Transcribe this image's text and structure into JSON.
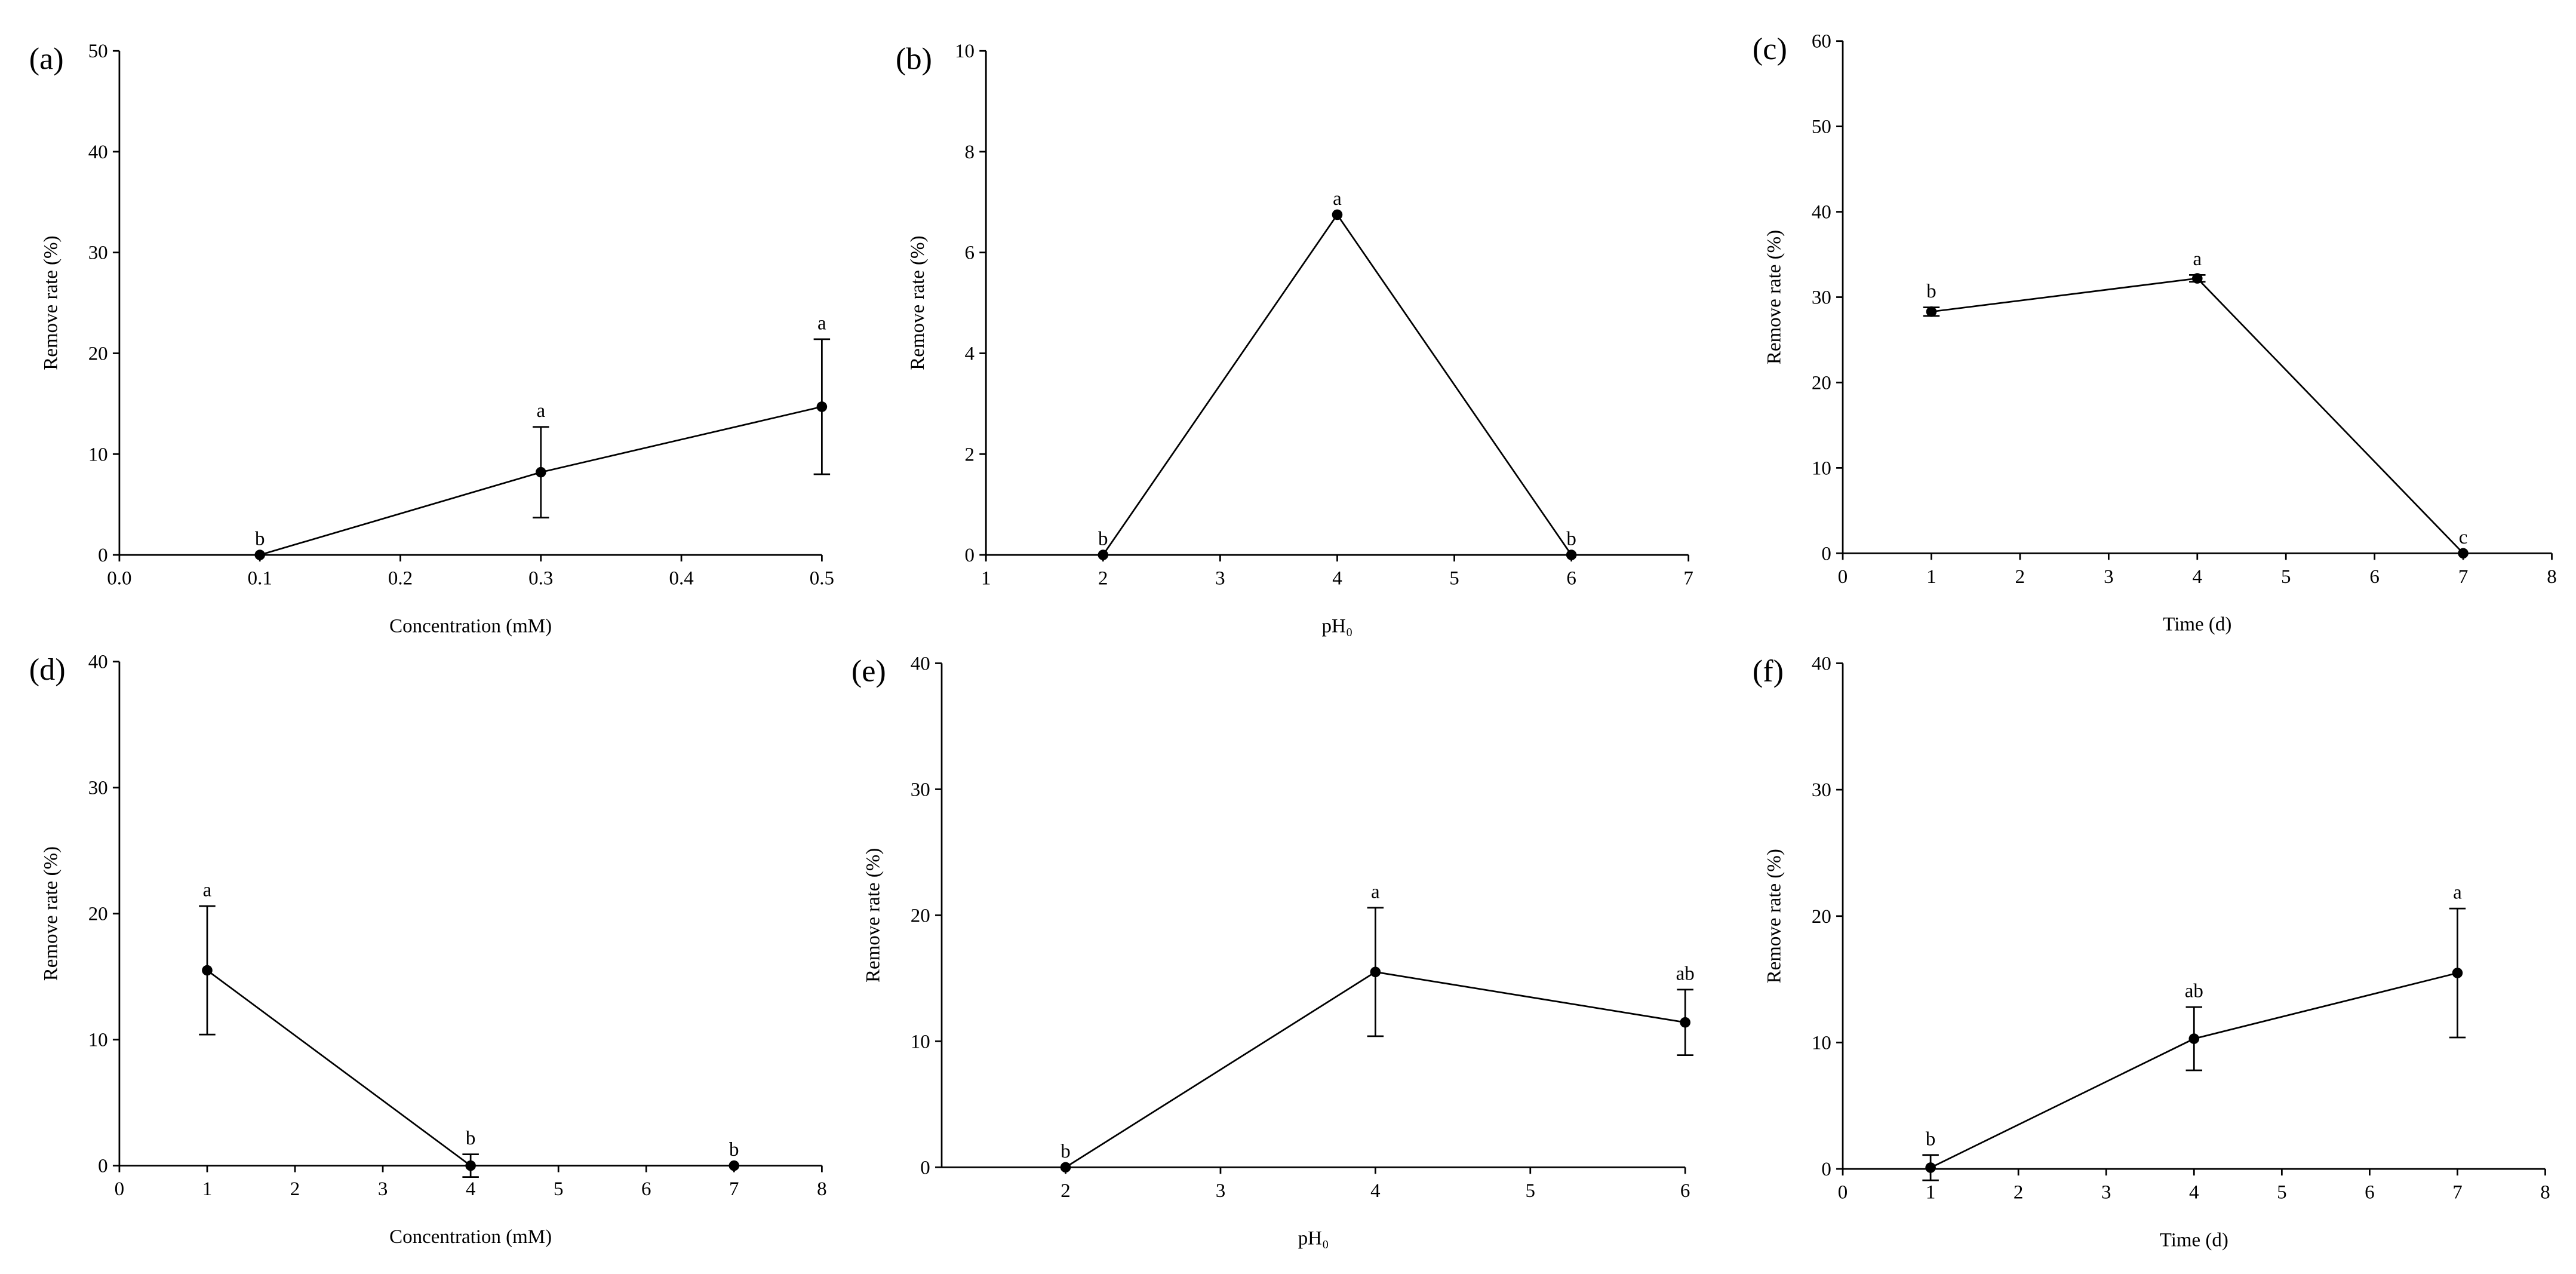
{
  "chart_data": [
    {
      "type": "line",
      "panel_label": "(a)",
      "ylabel": "Remove rate (%)",
      "xlabel": "Concentration (mM)",
      "x": [
        0.1,
        0.3,
        0.5
      ],
      "values": [
        0,
        8.2,
        14.7
      ],
      "errors": [
        null,
        4.5,
        6.7
      ],
      "annotations": [
        "b",
        "a",
        "a"
      ],
      "xlim": [
        0,
        0.5
      ],
      "xticks": [
        {
          "value": 0,
          "label": "0.0"
        },
        0.1,
        0.2,
        0.3,
        0.4,
        0.5
      ],
      "ylim": [
        0,
        50
      ],
      "yticks": [
        0,
        10,
        20,
        30,
        40,
        50
      ]
    },
    {
      "type": "line",
      "panel_label": "(b)",
      "ylabel": "Remove rate (%)",
      "xlabel": "pH₀",
      "x": [
        2,
        4,
        6
      ],
      "values": [
        0,
        6.75,
        0
      ],
      "errors": [
        null,
        null,
        null
      ],
      "annotations": [
        "b",
        "a",
        "b"
      ],
      "xlim": [
        1,
        7
      ],
      "xticks": [
        1,
        2,
        3,
        4,
        5,
        6,
        7
      ],
      "ylim": [
        0,
        10
      ],
      "yticks": [
        0,
        2,
        4,
        6,
        8,
        10
      ]
    },
    {
      "type": "line",
      "panel_label": "(c)",
      "ylabel": "Remove rate (%)",
      "xlabel": "Time (d)",
      "x": [
        1,
        4,
        7
      ],
      "values": [
        28.3,
        32.2,
        0
      ],
      "errors": [
        0.5,
        0.4,
        null
      ],
      "annotations": [
        "b",
        "a",
        "c"
      ],
      "xlim": [
        0,
        8
      ],
      "xticks": [
        0,
        1,
        2,
        3,
        4,
        5,
        6,
        7,
        8
      ],
      "ylim": [
        0,
        60
      ],
      "yticks": [
        0,
        10,
        20,
        30,
        40,
        50,
        60
      ]
    },
    {
      "type": "line",
      "panel_label": "(d)",
      "ylabel": "Remove rate (%)",
      "xlabel": "Concentration (mM)",
      "x": [
        1,
        4,
        7
      ],
      "values": [
        15.5,
        0,
        0
      ],
      "errors": [
        5.1,
        0.9,
        null
      ],
      "annotations": [
        "a",
        "b",
        "b"
      ],
      "xlim": [
        0,
        8
      ],
      "xticks": [
        0,
        1,
        2,
        3,
        4,
        5,
        6,
        7,
        8
      ],
      "ylim": [
        0,
        40
      ],
      "yticks": [
        0,
        10,
        20,
        30,
        40
      ]
    },
    {
      "type": "line",
      "panel_label": "(e)",
      "ylabel": "Remove rate (%)",
      "xlabel": "pH₀",
      "x": [
        2,
        4,
        6
      ],
      "values": [
        0,
        15.5,
        11.5
      ],
      "errors": [
        null,
        5.1,
        2.6
      ],
      "annotations": [
        "b",
        "a",
        "ab"
      ],
      "xlim": [
        1.2,
        6
      ],
      "xticks": [
        2,
        3,
        4,
        5,
        6
      ],
      "ylim": [
        0,
        40
      ],
      "yticks": [
        0,
        10,
        20,
        30,
        40
      ]
    },
    {
      "type": "line",
      "panel_label": "(f)",
      "ylabel": "Remove rate (%)",
      "xlabel": "Time (d)",
      "x": [
        1,
        4,
        7
      ],
      "values": [
        0.1,
        10.3,
        15.5
      ],
      "errors": [
        1.0,
        2.5,
        5.1
      ],
      "annotations": [
        "b",
        "ab",
        "a"
      ],
      "xlim": [
        0,
        8
      ],
      "xticks": [
        0,
        1,
        2,
        3,
        4,
        5,
        6,
        7,
        8
      ],
      "ylim": [
        0,
        40
      ],
      "yticks": [
        0,
        10,
        20,
        30,
        40
      ]
    }
  ]
}
